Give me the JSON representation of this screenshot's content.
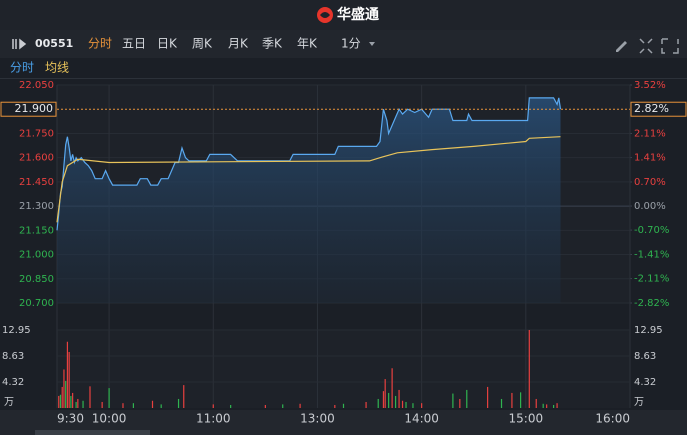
{
  "app": {
    "logo_text": "华盛通",
    "code": "00551",
    "tabs": [
      "分时",
      "五日",
      "日K",
      "周K",
      "月K",
      "季K",
      "年K"
    ],
    "interval": "1分",
    "sub_tabs": [
      "分时",
      "均线"
    ]
  },
  "chart_data": {
    "type": "line",
    "base": 21.3,
    "x": [
      0,
      1,
      2,
      3,
      4,
      5,
      6,
      7,
      8,
      9,
      10,
      11,
      12,
      14,
      16,
      18,
      20,
      22,
      26,
      28,
      30,
      32,
      40,
      46,
      48,
      52,
      54,
      58,
      60,
      64,
      66,
      68,
      70,
      72,
      74,
      76,
      86,
      88,
      100,
      102,
      104,
      134,
      136,
      160,
      162,
      184,
      186,
      188,
      190,
      191,
      193,
      195,
      197,
      199,
      202,
      206,
      210,
      214,
      216,
      226,
      228,
      236,
      237,
      239,
      271,
      272,
      278,
      286,
      288,
      289,
      290
    ],
    "series": [
      {
        "name": "分时",
        "color": "#5aa9f0",
        "values": [
          21.15,
          21.25,
          21.38,
          21.42,
          21.55,
          21.68,
          21.73,
          21.66,
          21.58,
          21.62,
          21.57,
          21.6,
          21.58,
          21.6,
          21.57,
          21.55,
          21.52,
          21.47,
          21.47,
          21.52,
          21.47,
          21.43,
          21.43,
          21.43,
          21.47,
          21.47,
          21.43,
          21.43,
          21.47,
          21.47,
          21.52,
          21.57,
          21.57,
          21.66,
          21.6,
          21.58,
          21.58,
          21.62,
          21.62,
          21.6,
          21.58,
          21.58,
          21.62,
          21.62,
          21.67,
          21.67,
          21.7,
          21.9,
          21.83,
          21.75,
          21.8,
          21.85,
          21.9,
          21.87,
          21.9,
          21.88,
          21.9,
          21.85,
          21.9,
          21.9,
          21.83,
          21.83,
          21.87,
          21.83,
          21.83,
          21.97,
          21.97,
          21.97,
          21.93,
          21.97,
          21.9
        ]
      },
      {
        "name": "均线",
        "color": "#e8c35a",
        "x": [
          0,
          3,
          6,
          12,
          30,
          100,
          180,
          186,
          196,
          216,
          240,
          270,
          272,
          290
        ],
        "values": [
          21.2,
          21.45,
          21.55,
          21.59,
          21.57,
          21.575,
          21.58,
          21.6,
          21.63,
          21.65,
          21.67,
          21.7,
          21.72,
          21.73
        ]
      }
    ],
    "xlim": [
      0,
      330
    ],
    "xticks": [
      {
        "value": 0,
        "label": "9:30"
      },
      {
        "value": 30,
        "label": "10:00"
      },
      {
        "value": 90,
        "label": "11:00"
      },
      {
        "value": 150,
        "label": "13:00"
      },
      {
        "value": 210,
        "label": "14:00"
      },
      {
        "value": 270,
        "label": "15:00"
      },
      {
        "value": 330,
        "label": "16:00"
      }
    ],
    "ylim": [
      20.7,
      22.05
    ],
    "yticks": [
      {
        "value": 22.05,
        "label": "22.050"
      },
      {
        "value": 21.75,
        "label": "21.750"
      },
      {
        "value": 21.6,
        "label": "21.600"
      },
      {
        "value": 21.45,
        "label": "21.450"
      },
      {
        "value": 21.3,
        "label": "21.300"
      },
      {
        "value": 21.15,
        "label": "21.150"
      },
      {
        "value": 21,
        "label": "21.000"
      },
      {
        "value": 20.85,
        "label": "20.850"
      },
      {
        "value": 20.7,
        "label": "20.700"
      }
    ],
    "y2lim": [
      -2.82,
      3.52
    ],
    "y2ticks": [
      {
        "value": 3.52,
        "label": "3.52%"
      },
      {
        "value": 2.11,
        "label": "2.11%"
      },
      {
        "value": 1.41,
        "label": "1.41%"
      },
      {
        "value": 0.7,
        "label": "0.70%"
      },
      {
        "value": 0,
        "label": "0.00%"
      },
      {
        "value": -0.7,
        "label": "-0.70%"
      },
      {
        "value": -1.41,
        "label": "-1.41%"
      },
      {
        "value": -2.11,
        "label": "-2.11%"
      },
      {
        "value": -2.82,
        "label": "-2.82%"
      }
    ],
    "current": {
      "value": 21.9,
      "label": "21.900",
      "pct": 2.82,
      "pct_label": "2.82%",
      "color": "#e8933a"
    },
    "up_color": "#e8403f",
    "down_color": "#2fb450",
    "flat_color": "#9aa0a8",
    "volume": {
      "ylim": [
        0,
        12.95
      ],
      "yticks": [
        12.95,
        8.63,
        4.32
      ],
      "unit": "万",
      "up": {
        "x": [
          1,
          3,
          4,
          6,
          7,
          9,
          12,
          19,
          26,
          38,
          55,
          73,
          90,
          120,
          140,
          160,
          178,
          188,
          189,
          193,
          197,
          199,
          210,
          232,
          248,
          262,
          272,
          276,
          282,
          288
        ],
        "values": [
          2.0,
          3.5,
          6.4,
          11.0,
          9.3,
          2.5,
          1.5,
          3.6,
          1.0,
          0.8,
          1.2,
          3.8,
          0.6,
          0.5,
          0.7,
          0.5,
          1.0,
          2.8,
          4.8,
          6.6,
          3.0,
          1.2,
          0.8,
          1.5,
          3.5,
          2.5,
          12.95,
          1.5,
          0.6,
          0.8
        ]
      },
      "down": {
        "x": [
          2,
          5,
          8,
          11,
          15,
          30,
          44,
          60,
          70,
          100,
          130,
          165,
          185,
          191,
          195,
          201,
          205,
          228,
          236,
          256,
          267,
          280,
          286
        ],
        "values": [
          2.2,
          4.5,
          2.0,
          1.0,
          1.2,
          3.3,
          0.8,
          0.6,
          1.5,
          0.5,
          0.6,
          0.7,
          1.5,
          2.5,
          2.0,
          1.0,
          0.8,
          2.4,
          3.0,
          1.5,
          2.6,
          0.7,
          0.5
        ]
      }
    }
  }
}
